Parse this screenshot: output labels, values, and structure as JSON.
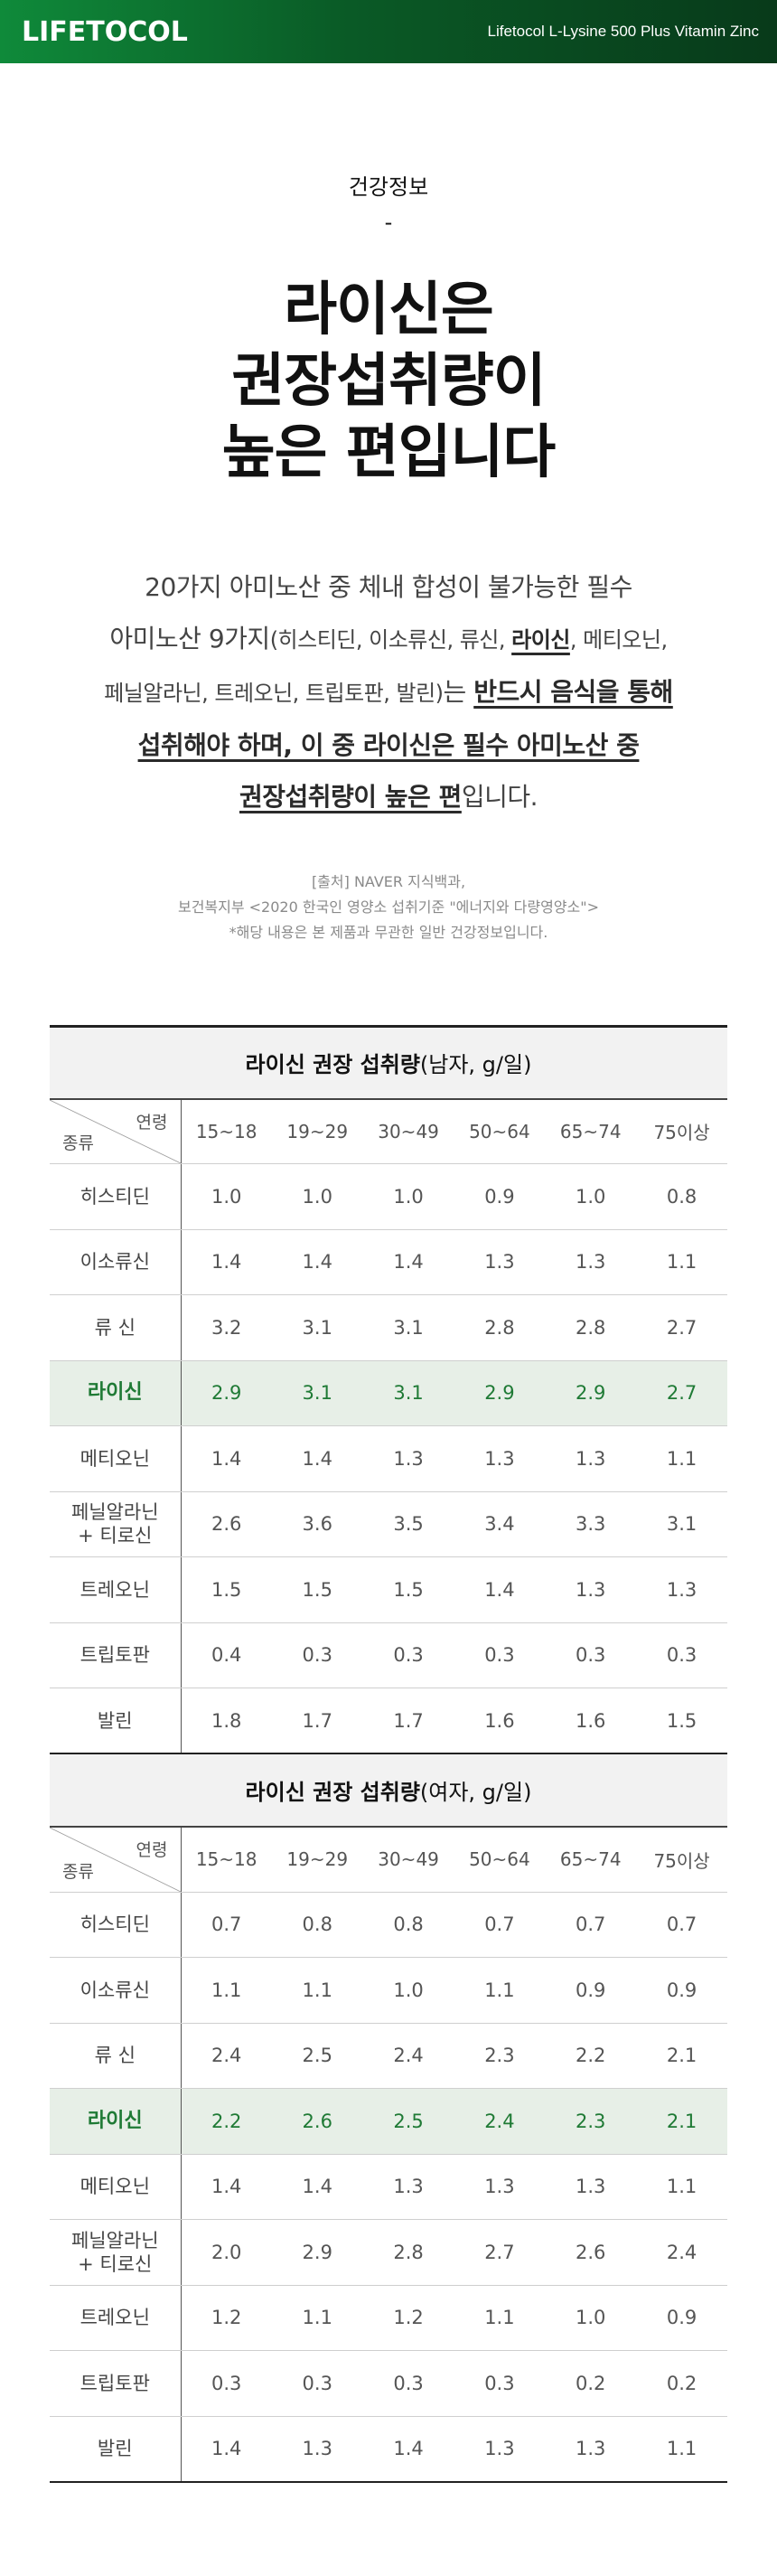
{
  "header": {
    "brand": "LIFETOCOL",
    "product": "Lifetocol L-Lysine 500 Plus Vitamin Zinc",
    "gradient_colors": [
      "#0f8a3a",
      "#083a1a"
    ]
  },
  "intro": {
    "kicker": "건강정보",
    "dash": "-",
    "headline": [
      "라이신은",
      "권장섭취량이",
      "높은 편입니다"
    ]
  },
  "body": {
    "l1": "20가지 아미노산 중 체내 합성이 불가능한 필수",
    "l2a": "아미노산 9가지",
    "l2b": "(히스티딘, 이소류신, 류신, ",
    "l2c": "라이신",
    "l2d": ", 메티오닌,",
    "l3a": "페닐알라닌, 트레오닌, 트립토판, 발린)",
    "l3b": "는 ",
    "l3c": "반드시 음식을 통해",
    "l4": "섭취해야 하며, 이 중 라이신은 필수 아미노산 중",
    "l5a": "권장섭취량이 높은 편",
    "l5b": "입니다."
  },
  "source": {
    "line1": "[출처] NAVER 지식백과,",
    "line2": "보건복지부 <2020 한국인 영양소 섭취기준 \"에너지와 다량영양소\">",
    "line3": "*해당 내용은 본 제품과 무관한 일반 건강정보입니다."
  },
  "tables": [
    {
      "title_bold": "라이신 권장 섭취량",
      "title_unit": "(남자, g/일)",
      "corner_top": "연령",
      "corner_bottom": "종류",
      "ages": [
        "15~18",
        "19~29",
        "30~49",
        "50~64",
        "65~74",
        "75이상"
      ],
      "rows": [
        {
          "name": "히스티딘",
          "values": [
            "1.0",
            "1.0",
            "1.0",
            "0.9",
            "1.0",
            "0.8"
          ]
        },
        {
          "name": "이소류신",
          "values": [
            "1.4",
            "1.4",
            "1.4",
            "1.3",
            "1.3",
            "1.1"
          ]
        },
        {
          "name": "류 신",
          "values": [
            "3.2",
            "3.1",
            "3.1",
            "2.8",
            "2.8",
            "2.7"
          ]
        },
        {
          "name": "라이신",
          "values": [
            "2.9",
            "3.1",
            "3.1",
            "2.9",
            "2.9",
            "2.7"
          ],
          "highlight": true
        },
        {
          "name": "메티오닌",
          "values": [
            "1.4",
            "1.4",
            "1.3",
            "1.3",
            "1.3",
            "1.1"
          ]
        },
        {
          "name": "페닐알라닌\n+ 티로신",
          "values": [
            "2.6",
            "3.6",
            "3.5",
            "3.4",
            "3.3",
            "3.1"
          ]
        },
        {
          "name": "트레오닌",
          "values": [
            "1.5",
            "1.5",
            "1.5",
            "1.4",
            "1.3",
            "1.3"
          ]
        },
        {
          "name": "트립토판",
          "values": [
            "0.4",
            "0.3",
            "0.3",
            "0.3",
            "0.3",
            "0.3"
          ]
        },
        {
          "name": "발린",
          "values": [
            "1.8",
            "1.7",
            "1.7",
            "1.6",
            "1.6",
            "1.5"
          ]
        }
      ]
    },
    {
      "title_bold": "라이신 권장 섭취량",
      "title_unit": "(여자, g/일)",
      "corner_top": "연령",
      "corner_bottom": "종류",
      "ages": [
        "15~18",
        "19~29",
        "30~49",
        "50~64",
        "65~74",
        "75이상"
      ],
      "rows": [
        {
          "name": "히스티딘",
          "values": [
            "0.7",
            "0.8",
            "0.8",
            "0.7",
            "0.7",
            "0.7"
          ]
        },
        {
          "name": "이소류신",
          "values": [
            "1.1",
            "1.1",
            "1.0",
            "1.1",
            "0.9",
            "0.9"
          ]
        },
        {
          "name": "류 신",
          "values": [
            "2.4",
            "2.5",
            "2.4",
            "2.3",
            "2.2",
            "2.1"
          ]
        },
        {
          "name": "라이신",
          "values": [
            "2.2",
            "2.6",
            "2.5",
            "2.4",
            "2.3",
            "2.1"
          ],
          "highlight": true
        },
        {
          "name": "메티오닌",
          "values": [
            "1.4",
            "1.4",
            "1.3",
            "1.3",
            "1.3",
            "1.1"
          ]
        },
        {
          "name": "페닐알라닌\n+ 티로신",
          "values": [
            "2.0",
            "2.9",
            "2.8",
            "2.7",
            "2.6",
            "2.4"
          ]
        },
        {
          "name": "트레오닌",
          "values": [
            "1.2",
            "1.1",
            "1.2",
            "1.1",
            "1.0",
            "0.9"
          ]
        },
        {
          "name": "트립토판",
          "values": [
            "0.3",
            "0.3",
            "0.3",
            "0.3",
            "0.2",
            "0.2"
          ]
        },
        {
          "name": "발린",
          "values": [
            "1.4",
            "1.3",
            "1.4",
            "1.3",
            "1.3",
            "1.1"
          ]
        }
      ]
    }
  ],
  "colors": {
    "highlight_bg": "#e7efe7",
    "highlight_text": "#1f7a35"
  }
}
